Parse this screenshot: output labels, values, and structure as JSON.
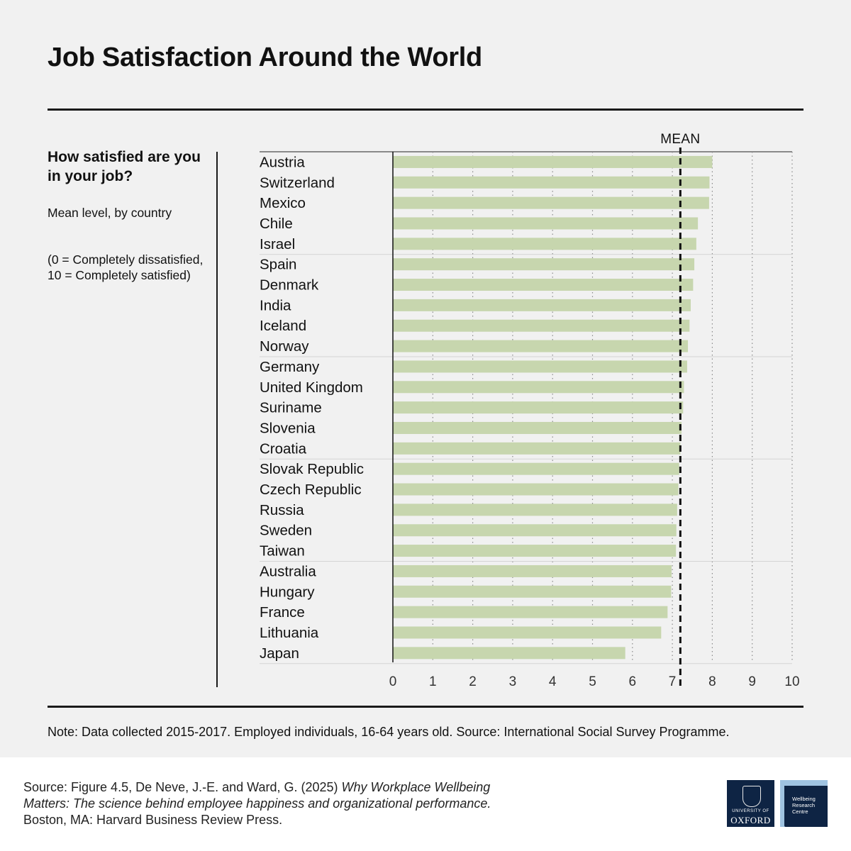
{
  "title": "Job Satisfaction Around the World",
  "sidebar": {
    "question": "How satisfied are you in your job?",
    "description": "Mean level, by country",
    "scale_note": "(0 = Completely dissatisfied,\n10 = Completely satisfied)"
  },
  "chart_data": {
    "type": "bar",
    "orientation": "horizontal",
    "categories": [
      "Austria",
      "Switzerland",
      "Mexico",
      "Chile",
      "Israel",
      "Spain",
      "Denmark",
      "India",
      "Iceland",
      "Norway",
      "Germany",
      "United Kingdom",
      "Suriname",
      "Slovenia",
      "Croatia",
      "Slovak Republic",
      "Czech Republic",
      "Russia",
      "Sweden",
      "Taiwan",
      "Australia",
      "Hungary",
      "France",
      "Lithuania",
      "Japan"
    ],
    "values": [
      8.0,
      7.93,
      7.92,
      7.64,
      7.6,
      7.55,
      7.52,
      7.46,
      7.43,
      7.39,
      7.37,
      7.29,
      7.27,
      7.23,
      7.2,
      7.17,
      7.15,
      7.12,
      7.1,
      7.09,
      6.98,
      6.97,
      6.88,
      6.72,
      5.82
    ],
    "xlim": [
      0,
      10
    ],
    "xticks": [
      0,
      1,
      2,
      3,
      4,
      5,
      6,
      7,
      8,
      9,
      10
    ],
    "mean_value": 7.2,
    "mean_label": "MEAN",
    "bar_color": "#c7d6ae",
    "grid": "vertical dotted",
    "title": "",
    "xlabel": "",
    "ylabel": ""
  },
  "note": "Note: Data collected 2015-2017. Employed individuals, 16-64 years old. Source: International Social Survey Programme.",
  "footer": {
    "source_prefix": "Source: Figure 4.5, De Neve, J.-E. and Ward, G. (2025) ",
    "source_title": "Why Workplace Wellbeing Matters: The science behind employee happiness and organizational performance.",
    "source_suffix": " Boston, MA: Harvard Business Review Press.",
    "logo_oxford_top": "UNIVERSITY OF",
    "logo_oxford_bottom": "OXFORD",
    "logo_wrc": "Wellbeing\nResearch\nCentre"
  }
}
